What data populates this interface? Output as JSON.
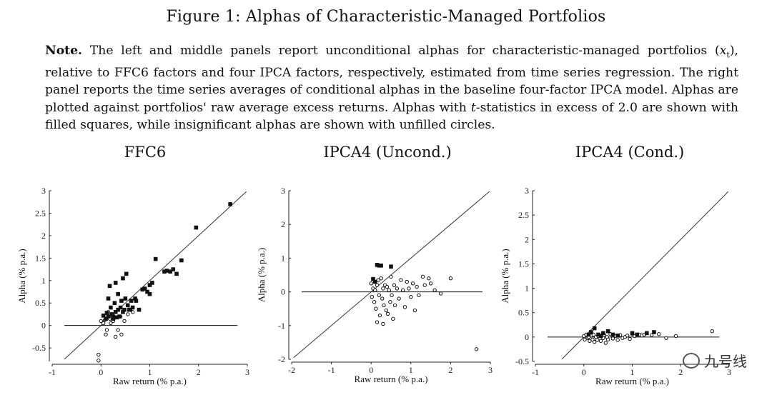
{
  "figure": {
    "title": "Figure 1: Alphas of Characteristic-Managed Portfolios",
    "note_label": "Note.",
    "note_text": "The left and middle panels report unconditional alphas for characteristic-managed portfolios (x_t), relative to FFC6 factors and four IPCA factors, respectively, estimated from time series regression. The right panel reports the time series averages of conditional alphas in the baseline four-factor IPCA model. Alphas are plotted against portfolios' raw average excess returns. Alphas with t-statistics in excess of 2.0 are shown with filled squares, while insignificant alphas are shown with unfilled circles."
  },
  "watermark": {
    "text": "九号线",
    "icon": "wechat-icon"
  },
  "chart_data": [
    {
      "type": "scatter",
      "title": "FFC6",
      "xlabel": "Raw return (% p.a.)",
      "ylabel": "Alpha (% p.a.)",
      "xlim": [
        -1,
        3
      ],
      "ylim": [
        -0.8,
        3
      ],
      "xticks": [
        -1,
        0,
        1,
        2,
        3
      ],
      "yticks": [
        -0.5,
        0,
        0.5,
        1,
        1.5,
        2,
        2.5,
        3
      ],
      "ytick_labels": [
        "-0.5",
        "0",
        "0.5",
        "1",
        "1.5",
        "2",
        "2.5",
        "3"
      ],
      "grid": false,
      "legend": "none",
      "reference_lines": [
        {
          "kind": "diagonal_45"
        },
        {
          "kind": "horizontal",
          "y": 0
        }
      ],
      "significant": [
        [
          0.05,
          0.22
        ],
        [
          0.1,
          0.15
        ],
        [
          0.12,
          0.28
        ],
        [
          0.15,
          0.6
        ],
        [
          0.15,
          0.2
        ],
        [
          0.18,
          0.88
        ],
        [
          0.2,
          0.4
        ],
        [
          0.22,
          0.25
        ],
        [
          0.25,
          0.15
        ],
        [
          0.25,
          0.2
        ],
        [
          0.28,
          0.5
        ],
        [
          0.3,
          0.95
        ],
        [
          0.3,
          0.3
        ],
        [
          0.32,
          0.18
        ],
        [
          0.35,
          0.7
        ],
        [
          0.35,
          0.35
        ],
        [
          0.38,
          0.2
        ],
        [
          0.4,
          0.4
        ],
        [
          0.42,
          0.55
        ],
        [
          0.45,
          1.05
        ],
        [
          0.45,
          0.3
        ],
        [
          0.48,
          0.35
        ],
        [
          0.5,
          0.6
        ],
        [
          0.52,
          1.15
        ],
        [
          0.55,
          0.45
        ],
        [
          0.58,
          0.35
        ],
        [
          0.6,
          0.35
        ],
        [
          0.62,
          0.55
        ],
        [
          0.65,
          0.4
        ],
        [
          0.7,
          0.6
        ],
        [
          0.72,
          0.55
        ],
        [
          0.78,
          0.35
        ],
        [
          0.85,
          0.8
        ],
        [
          0.9,
          0.82
        ],
        [
          0.95,
          0.75
        ],
        [
          1.0,
          0.7
        ],
        [
          1.0,
          0.9
        ],
        [
          1.05,
          0.95
        ],
        [
          1.12,
          1.48
        ],
        [
          1.3,
          1.2
        ],
        [
          1.35,
          1.22
        ],
        [
          1.42,
          1.2
        ],
        [
          1.48,
          1.25
        ],
        [
          1.55,
          1.15
        ],
        [
          1.65,
          1.45
        ],
        [
          1.95,
          2.18
        ],
        [
          2.65,
          2.7
        ]
      ],
      "insignificant": [
        [
          -0.05,
          -0.65
        ],
        [
          -0.05,
          -0.78
        ],
        [
          0.0,
          0.1
        ],
        [
          0.05,
          0.05
        ],
        [
          0.08,
          0.12
        ],
        [
          0.1,
          -0.2
        ],
        [
          0.12,
          -0.1
        ],
        [
          0.15,
          0.3
        ],
        [
          0.18,
          0.15
        ],
        [
          0.2,
          0.05
        ],
        [
          0.25,
          0.1
        ],
        [
          0.3,
          -0.25
        ],
        [
          0.35,
          -0.1
        ],
        [
          0.4,
          0.2
        ],
        [
          0.42,
          -0.2
        ],
        [
          0.48,
          0.1
        ],
        [
          0.55,
          0.25
        ],
        [
          0.65,
          0.3
        ]
      ]
    },
    {
      "type": "scatter",
      "title": "IPCA4 (Uncond.)",
      "xlabel": "Raw return (% p.a.)",
      "ylabel": "Alpha (% p.a.)",
      "xlim": [
        -2,
        3
      ],
      "ylim": [
        -2,
        3
      ],
      "xticks": [
        -2,
        -1,
        0,
        1,
        2,
        3
      ],
      "yticks": [
        -2,
        -1,
        0,
        1,
        2,
        3
      ],
      "ytick_labels": [
        "-2",
        "-1",
        "0",
        "1",
        "2",
        "3"
      ],
      "grid": false,
      "legend": "none",
      "reference_lines": [
        {
          "kind": "diagonal_45"
        },
        {
          "kind": "horizontal",
          "y": 0
        }
      ],
      "significant": [
        [
          0.05,
          0.38
        ],
        [
          0.1,
          0.3
        ],
        [
          0.15,
          0.8
        ],
        [
          0.2,
          0.78
        ],
        [
          0.25,
          0.78
        ],
        [
          0.5,
          0.75
        ]
      ],
      "insignificant": [
        [
          0.0,
          0.25
        ],
        [
          0.02,
          -0.15
        ],
        [
          0.05,
          0.1
        ],
        [
          0.08,
          -0.3
        ],
        [
          0.1,
          0.05
        ],
        [
          0.12,
          -0.5
        ],
        [
          0.15,
          0.2
        ],
        [
          0.15,
          -0.9
        ],
        [
          0.18,
          0.35
        ],
        [
          0.2,
          -0.1
        ],
        [
          0.22,
          -0.7
        ],
        [
          0.25,
          0.4
        ],
        [
          0.28,
          -0.2
        ],
        [
          0.3,
          0.1
        ],
        [
          0.3,
          -0.95
        ],
        [
          0.32,
          -0.4
        ],
        [
          0.35,
          0.2
        ],
        [
          0.38,
          -0.55
        ],
        [
          0.4,
          0.15
        ],
        [
          0.42,
          -0.65
        ],
        [
          0.45,
          0.05
        ],
        [
          0.48,
          -0.3
        ],
        [
          0.5,
          0.45
        ],
        [
          0.52,
          -0.1
        ],
        [
          0.55,
          -0.8
        ],
        [
          0.58,
          0.2
        ],
        [
          0.6,
          -0.4
        ],
        [
          0.65,
          0.1
        ],
        [
          0.7,
          -0.2
        ],
        [
          0.75,
          0.35
        ],
        [
          0.8,
          0.05
        ],
        [
          0.85,
          -0.45
        ],
        [
          0.9,
          0.3
        ],
        [
          0.95,
          0.1
        ],
        [
          1.0,
          -0.15
        ],
        [
          1.05,
          0.25
        ],
        [
          1.1,
          -0.55
        ],
        [
          1.15,
          0.15
        ],
        [
          1.2,
          -0.1
        ],
        [
          1.3,
          0.45
        ],
        [
          1.35,
          0.2
        ],
        [
          1.45,
          0.4
        ],
        [
          1.5,
          0.25
        ],
        [
          1.6,
          0.05
        ],
        [
          1.75,
          -0.05
        ],
        [
          2.0,
          0.4
        ],
        [
          2.65,
          -1.7
        ]
      ]
    },
    {
      "type": "scatter",
      "title": "IPCA4 (Cond.)",
      "xlabel": "Raw return (% p.a.)",
      "ylabel": "Alpha (% p.a.)",
      "xlim": [
        -1,
        3
      ],
      "ylim": [
        -0.5,
        3
      ],
      "xticks": [
        -1,
        0,
        1,
        2,
        3
      ],
      "yticks": [
        -0.5,
        0,
        0.5,
        1,
        1.5,
        2,
        2.5,
        3
      ],
      "ytick_labels": [
        "-0.5",
        "0",
        "0.5",
        "1",
        "1.5",
        "2",
        "2.5",
        "3"
      ],
      "grid": false,
      "legend": "none",
      "reference_lines": [
        {
          "kind": "diagonal_45"
        },
        {
          "kind": "horizontal",
          "y": 0
        }
      ],
      "significant": [
        [
          0.1,
          0.05
        ],
        [
          0.15,
          0.1
        ],
        [
          0.22,
          0.18
        ],
        [
          0.3,
          0.05
        ],
        [
          0.35,
          0.02
        ],
        [
          0.4,
          0.08
        ],
        [
          0.5,
          0.12
        ],
        [
          0.6,
          0.05
        ],
        [
          0.7,
          0.03
        ],
        [
          1.0,
          0.08
        ],
        [
          1.1,
          0.05
        ],
        [
          1.3,
          0.08
        ],
        [
          1.45,
          0.1
        ]
      ],
      "insignificant": [
        [
          0.0,
          0.02
        ],
        [
          0.02,
          -0.05
        ],
        [
          0.05,
          0.05
        ],
        [
          0.08,
          -0.02
        ],
        [
          0.1,
          0.0
        ],
        [
          0.12,
          -0.08
        ],
        [
          0.15,
          0.03
        ],
        [
          0.18,
          -0.05
        ],
        [
          0.2,
          0.05
        ],
        [
          0.22,
          -0.1
        ],
        [
          0.25,
          0.0
        ],
        [
          0.28,
          -0.06
        ],
        [
          0.3,
          0.02
        ],
        [
          0.35,
          -0.08
        ],
        [
          0.4,
          -0.02
        ],
        [
          0.42,
          0.04
        ],
        [
          0.45,
          -0.12
        ],
        [
          0.48,
          0.0
        ],
        [
          0.5,
          -0.05
        ],
        [
          0.55,
          0.06
        ],
        [
          0.6,
          -0.03
        ],
        [
          0.65,
          0.02
        ],
        [
          0.7,
          -0.06
        ],
        [
          0.75,
          0.04
        ],
        [
          0.8,
          -0.02
        ],
        [
          0.85,
          0.0
        ],
        [
          0.9,
          0.03
        ],
        [
          0.95,
          -0.04
        ],
        [
          1.0,
          0.06
        ],
        [
          1.05,
          0.02
        ],
        [
          1.15,
          0.05
        ],
        [
          1.2,
          0.03
        ],
        [
          1.25,
          0.05
        ],
        [
          1.4,
          0.04
        ],
        [
          1.55,
          0.06
        ],
        [
          1.7,
          -0.02
        ],
        [
          1.9,
          0.02
        ],
        [
          2.65,
          0.12
        ]
      ]
    }
  ]
}
